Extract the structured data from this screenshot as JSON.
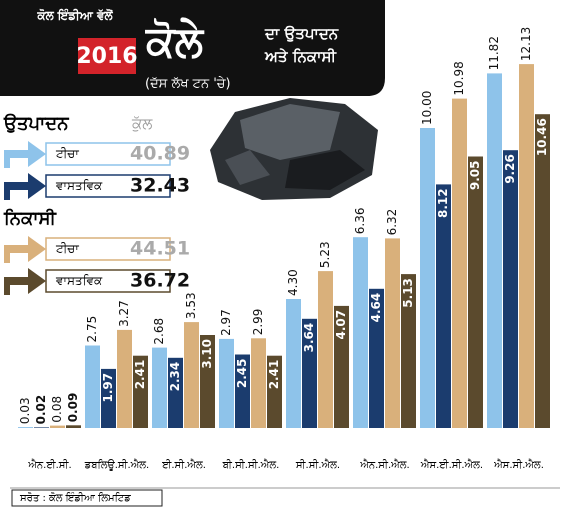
{
  "header": {
    "brand": "ਕੋਲ ਇੰਡੀਆ ਵੱਲੋਂ",
    "year": "2016",
    "title": "ਕੋਲੇ",
    "title_line1": "ਦਾ ਉਤਪਾਦਨ",
    "title_line2": "ਅਤੇ ਨਿਕਾਸੀ",
    "unit": "(ਦੱਸ ਲੱਖ ਟਨ 'ਚੇ)"
  },
  "chart_data": {
    "type": "bar",
    "categories": [
      "ਐਨ.ਈ.ਸੀ.",
      "ਡਬਲਿਊ.ਸੀ.ਐਲ.",
      "ਈ.ਸੀ.ਐਲ.",
      "ਬੀ.ਸੀ.ਸੀ.ਐਲ.",
      "ਸੀ.ਸੀ.ਐਲ.",
      "ਐਨ.ਸੀ.ਐਲ.",
      "ਐਸ.ਈ.ਸੀ.ਐਲ.",
      "ਐਸ.ਸੀ.ਐਲ."
    ],
    "series": [
      {
        "name": "ਟੀਚਾ",
        "color": "#8ec3ea",
        "values": [
          0.03,
          2.75,
          2.68,
          2.97,
          4.3,
          6.36,
          10.0,
          11.82
        ],
        "value_labels": [
          "0.03",
          "2.75",
          "2.68",
          "2.97",
          "4.30",
          "6.36",
          "10.00",
          "11.82"
        ]
      },
      {
        "name": "ਵਾਸਤਵਿਕ",
        "color": "#1b3c6e",
        "values": [
          0.02,
          1.97,
          2.34,
          2.45,
          3.64,
          4.64,
          8.12,
          9.26
        ],
        "value_labels": [
          "0.02",
          "1.97",
          "2.34",
          "2.45",
          "3.64",
          "4.64",
          "8.12",
          "9.26"
        ]
      },
      {
        "name": "ਟੀਚਾ",
        "color": "#d9b07b",
        "values": [
          0.08,
          3.27,
          3.53,
          2.99,
          5.23,
          6.32,
          10.98,
          12.13
        ],
        "value_labels": [
          "0.08",
          "3.27",
          "3.53",
          "2.99",
          "5.23",
          "6.32",
          "10.98",
          "12.13"
        ]
      },
      {
        "name": "ਵਾਸਤਵਿਕ",
        "color": "#5b4a2d",
        "values": [
          0.09,
          2.41,
          3.1,
          2.41,
          4.07,
          5.13,
          9.05,
          10.46
        ],
        "value_labels": [
          "0.09",
          "2.41",
          "3.10",
          "2.41",
          "4.07",
          "5.13",
          "9.05",
          "10.46"
        ]
      }
    ],
    "legend": {
      "total_label": "ਕੁੱਲ",
      "groups": [
        {
          "name": "ਉਤਪਾਦਨ",
          "totals": [
            40.89,
            32.43
          ]
        },
        {
          "name": "ਨਿਕਾਸੀ",
          "totals": [
            44.51,
            36.72
          ]
        }
      ]
    }
  },
  "source": "ਸਰੋਤ : ਕੋਲ ਇੰਡੀਆ ਲਿਮਟਿਡ"
}
